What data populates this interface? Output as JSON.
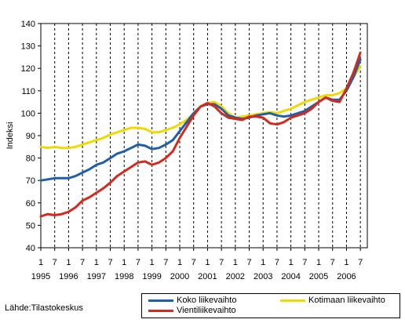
{
  "chart_data": {
    "type": "line",
    "title": "",
    "xlabel": "",
    "ylabel": "Indeksi",
    "ylim": [
      40,
      140
    ],
    "yticks": [
      40,
      50,
      60,
      70,
      80,
      90,
      100,
      110,
      120,
      130,
      140
    ],
    "xlim": [
      1995.0,
      2006.75
    ],
    "x_month_ticks": [
      "1",
      "7",
      "1",
      "7",
      "1",
      "7",
      "1",
      "7",
      "1",
      "7",
      "1",
      "7",
      "1",
      "7",
      "1",
      "7",
      "1",
      "7",
      "1",
      "7",
      "1",
      "7",
      "1",
      "7"
    ],
    "x_year_ticks": [
      "1995",
      "1996",
      "1997",
      "1998",
      "1999",
      "2000",
      "2001",
      "2002",
      "2003",
      "2004",
      "2005",
      "2006"
    ],
    "grid": "vertical dashed",
    "legend_position": "bottom",
    "series": [
      {
        "name": "Koko liikevaihto",
        "color": "#1f5fa8",
        "points": [
          [
            1995.0,
            70
          ],
          [
            1995.25,
            70.5
          ],
          [
            1995.5,
            71
          ],
          [
            1995.75,
            71
          ],
          [
            1996.0,
            71
          ],
          [
            1996.25,
            72
          ],
          [
            1996.5,
            73.5
          ],
          [
            1996.75,
            75
          ],
          [
            1997.0,
            77
          ],
          [
            1997.25,
            78
          ],
          [
            1997.5,
            80
          ],
          [
            1997.75,
            82
          ],
          [
            1998.0,
            83
          ],
          [
            1998.25,
            84.5
          ],
          [
            1998.5,
            86
          ],
          [
            1998.75,
            85.5
          ],
          [
            1999.0,
            84
          ],
          [
            1999.25,
            84.5
          ],
          [
            1999.5,
            86
          ],
          [
            1999.75,
            88
          ],
          [
            2000.0,
            92
          ],
          [
            2000.25,
            96
          ],
          [
            2000.5,
            100
          ],
          [
            2000.75,
            103
          ],
          [
            2001.0,
            104
          ],
          [
            2001.25,
            104
          ],
          [
            2001.5,
            102
          ],
          [
            2001.75,
            99
          ],
          [
            2002.0,
            98
          ],
          [
            2002.25,
            97.5
          ],
          [
            2002.5,
            98
          ],
          [
            2002.75,
            99
          ],
          [
            2003.0,
            99.5
          ],
          [
            2003.25,
            100
          ],
          [
            2003.5,
            99
          ],
          [
            2003.75,
            98.5
          ],
          [
            2004.0,
            99
          ],
          [
            2004.25,
            100
          ],
          [
            2004.5,
            101
          ],
          [
            2004.75,
            103
          ],
          [
            2005.0,
            105
          ],
          [
            2005.25,
            107
          ],
          [
            2005.5,
            106
          ],
          [
            2005.75,
            106
          ],
          [
            2006.0,
            110
          ],
          [
            2006.25,
            116
          ],
          [
            2006.5,
            124
          ]
        ]
      },
      {
        "name": "Kotimaan liikevaihto",
        "color": "#f0d800",
        "points": [
          [
            1995.0,
            85
          ],
          [
            1995.25,
            84.5
          ],
          [
            1995.5,
            85
          ],
          [
            1995.75,
            84.5
          ],
          [
            1996.0,
            84.5
          ],
          [
            1996.25,
            85
          ],
          [
            1996.5,
            86
          ],
          [
            1996.75,
            87
          ],
          [
            1997.0,
            88
          ],
          [
            1997.25,
            89
          ],
          [
            1997.5,
            90.5
          ],
          [
            1997.75,
            91.5
          ],
          [
            1998.0,
            92.5
          ],
          [
            1998.25,
            93.5
          ],
          [
            1998.5,
            93.5
          ],
          [
            1998.75,
            93
          ],
          [
            1999.0,
            91.5
          ],
          [
            1999.25,
            91.5
          ],
          [
            1999.5,
            92.5
          ],
          [
            1999.75,
            93.5
          ],
          [
            2000.0,
            95
          ],
          [
            2000.25,
            97
          ],
          [
            2000.5,
            100
          ],
          [
            2000.75,
            103
          ],
          [
            2001.0,
            104.5
          ],
          [
            2001.25,
            105
          ],
          [
            2001.5,
            103
          ],
          [
            2001.75,
            100
          ],
          [
            2002.0,
            98
          ],
          [
            2002.25,
            98.5
          ],
          [
            2002.5,
            99
          ],
          [
            2002.75,
            99.5
          ],
          [
            2003.0,
            100
          ],
          [
            2003.25,
            100.5
          ],
          [
            2003.5,
            100
          ],
          [
            2003.75,
            101
          ],
          [
            2004.0,
            102
          ],
          [
            2004.25,
            103.5
          ],
          [
            2004.5,
            105
          ],
          [
            2004.75,
            106
          ],
          [
            2005.0,
            107
          ],
          [
            2005.25,
            108
          ],
          [
            2005.5,
            108
          ],
          [
            2005.75,
            109
          ],
          [
            2006.0,
            111
          ],
          [
            2006.25,
            116
          ],
          [
            2006.5,
            121
          ]
        ]
      },
      {
        "name": "Vientiliikevaihto",
        "color": "#d42a1e",
        "points": [
          [
            1995.0,
            54
          ],
          [
            1995.25,
            55
          ],
          [
            1995.5,
            54.5
          ],
          [
            1995.75,
            55
          ],
          [
            1996.0,
            56
          ],
          [
            1996.25,
            58
          ],
          [
            1996.5,
            61
          ],
          [
            1996.75,
            62.5
          ],
          [
            1997.0,
            64.5
          ],
          [
            1997.25,
            66.5
          ],
          [
            1997.5,
            69
          ],
          [
            1997.75,
            72
          ],
          [
            1998.0,
            74
          ],
          [
            1998.25,
            76
          ],
          [
            1998.5,
            78
          ],
          [
            1998.75,
            78.5
          ],
          [
            1999.0,
            77
          ],
          [
            1999.25,
            78
          ],
          [
            1999.5,
            80
          ],
          [
            1999.75,
            83
          ],
          [
            2000.0,
            89
          ],
          [
            2000.25,
            94
          ],
          [
            2000.5,
            99
          ],
          [
            2000.75,
            103
          ],
          [
            2001.0,
            104.5
          ],
          [
            2001.25,
            103
          ],
          [
            2001.5,
            100
          ],
          [
            2001.75,
            98
          ],
          [
            2002.0,
            97.5
          ],
          [
            2002.25,
            97
          ],
          [
            2002.5,
            98.5
          ],
          [
            2002.75,
            98.5
          ],
          [
            2003.0,
            98
          ],
          [
            2003.25,
            95.5
          ],
          [
            2003.5,
            95
          ],
          [
            2003.75,
            96
          ],
          [
            2004.0,
            98
          ],
          [
            2004.25,
            99
          ],
          [
            2004.5,
            100
          ],
          [
            2004.75,
            102
          ],
          [
            2005.0,
            105
          ],
          [
            2005.25,
            107
          ],
          [
            2005.5,
            105.5
          ],
          [
            2005.75,
            105
          ],
          [
            2006.0,
            111
          ],
          [
            2006.25,
            118
          ],
          [
            2006.5,
            127
          ]
        ]
      }
    ]
  },
  "source_text": "Lähde:Tilastokeskus"
}
